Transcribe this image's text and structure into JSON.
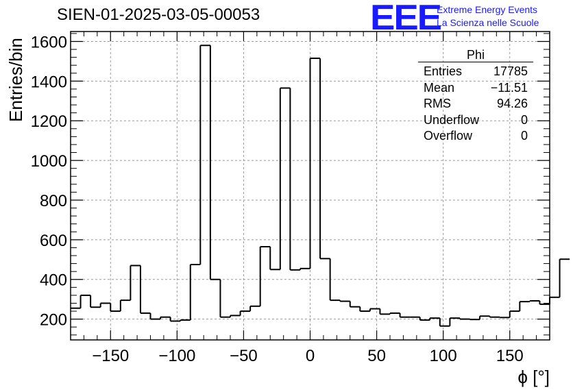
{
  "title": "SIEN-01-2025-03-05-00053",
  "logo": {
    "text": "EEE",
    "line1": "Extreme Energy Events",
    "line2": "La Scienza nelle Scuole",
    "color": "#1a1aff"
  },
  "stats_box": {
    "title": "Phi",
    "rows": [
      {
        "label": "Entries",
        "value": "17785"
      },
      {
        "label": "Mean",
        "value": "−11.51"
      },
      {
        "label": "RMS",
        "value": "94.26"
      },
      {
        "label": "Underflow",
        "value": "0"
      },
      {
        "label": "Overflow",
        "value": "0"
      }
    ]
  },
  "chart_data": {
    "type": "bar",
    "histogram": true,
    "xlabel": "ϕ [°]",
    "ylabel": "Entries/bin",
    "xlim": [
      -180,
      180
    ],
    "ylim": [
      95,
      1650
    ],
    "grid": true,
    "x_ticks": [
      -150,
      -100,
      -50,
      0,
      50,
      100,
      150
    ],
    "x_tick_labels": [
      "−150",
      "−100",
      "−50",
      "0",
      "50",
      "100",
      "150"
    ],
    "y_ticks": [
      200,
      400,
      600,
      800,
      1000,
      1200,
      1400,
      1600
    ],
    "y_tick_labels": [
      "200",
      "400",
      "600",
      "800",
      "1000",
      "1200",
      "1400",
      "1600"
    ],
    "bin_width": 7.5,
    "values": [
      255,
      320,
      260,
      280,
      240,
      295,
      470,
      230,
      200,
      210,
      190,
      195,
      475,
      1580,
      400,
      210,
      218,
      240,
      265,
      565,
      450,
      1365,
      448,
      455,
      1515,
      505,
      295,
      290,
      262,
      240,
      252,
      225,
      230,
      210,
      210,
      195,
      205,
      165,
      205,
      200,
      198,
      215,
      210,
      208,
      240,
      288,
      292,
      275,
      310,
      502
    ],
    "line_color": "#000000",
    "grid_color": "#9a9a9a"
  }
}
